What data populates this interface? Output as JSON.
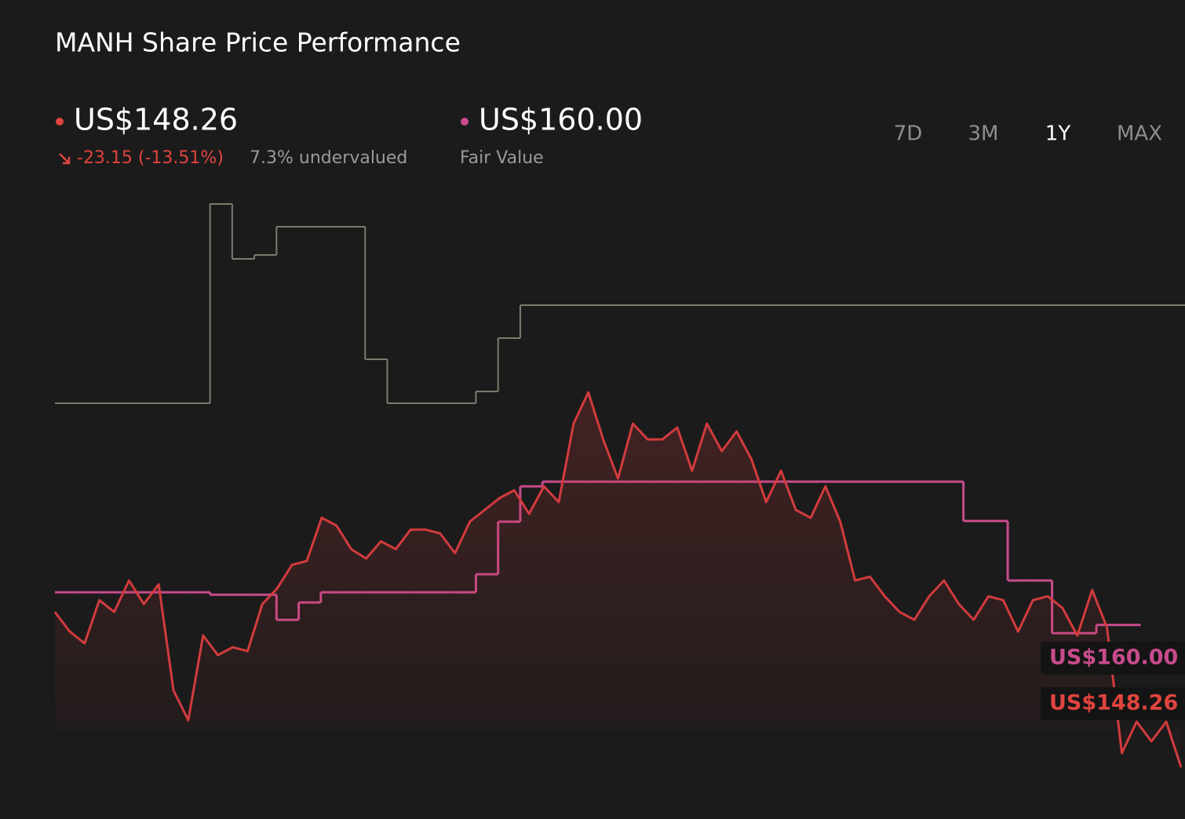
{
  "header": {
    "title": "MANH Share Price Performance",
    "price": "US$148.26",
    "change": "-23.15 (-13.51%)",
    "valuation": "7.3% undervalued",
    "fair_value": "US$160.00",
    "fair_value_label": "Fair Value"
  },
  "ranges": [
    "7D",
    "3M",
    "1Y",
    "MAX"
  ],
  "active_range": "1Y",
  "chart_data": {
    "type": "line",
    "ylim": [
      144,
      196
    ],
    "series": [
      {
        "color": "#7d7a6e",
        "step": true,
        "values": [
          178.28,
          178.28,
          178.28,
          178.28,
          178.28,
          178.28,
          178.28,
          194.71,
          190.18,
          190.5,
          192.83,
          192.83,
          192.83,
          192.83,
          181.9,
          178.28,
          178.28,
          178.28,
          178.28,
          179.25,
          183.65,
          186.36,
          186.36,
          186.36,
          186.36,
          186.36,
          186.36,
          186.36,
          186.36,
          186.36,
          186.36,
          186.36,
          186.36,
          186.36,
          186.36,
          186.36,
          186.36,
          186.36,
          186.36,
          186.36,
          186.36,
          186.36,
          186.36,
          186.36,
          186.36,
          186.36,
          186.36,
          186.36,
          186.36,
          186.36,
          186.36
        ]
      },
      {
        "color": "#c84b8c",
        "step": true,
        "values": [
          162.69,
          162.69,
          162.69,
          162.69,
          162.69,
          162.69,
          162.69,
          162.49,
          162.49,
          162.49,
          160.42,
          161.85,
          162.69,
          162.69,
          162.69,
          162.69,
          162.69,
          162.69,
          162.69,
          164.18,
          168.51,
          171.42,
          171.81,
          171.81,
          171.81,
          171.81,
          171.81,
          171.81,
          171.81,
          171.81,
          171.81,
          171.81,
          171.81,
          171.81,
          171.81,
          171.81,
          171.81,
          171.81,
          171.81,
          171.81,
          171.81,
          168.57,
          168.57,
          163.66,
          163.66,
          159.32,
          159.32,
          160,
          160,
          null,
          null
        ]
      },
      {
        "color": "#d23b3d",
        "values": [
          161.07,
          159.45,
          158.48,
          162.04,
          161.07,
          163.66,
          161.72,
          163.34,
          154.6,
          152.14,
          159.13,
          157.51,
          158.16,
          157.84,
          161.72,
          163.01,
          164.95,
          165.28,
          168.83,
          168.19,
          166.25,
          165.47,
          166.89,
          166.25,
          167.86,
          167.86,
          167.54,
          165.92,
          168.51,
          169.48,
          170.45,
          171.1,
          169.16,
          171.42,
          170.13,
          176.6,
          179.18,
          175.3,
          172.07,
          176.6,
          175.3,
          175.3,
          176.27,
          172.71,
          176.6,
          174.33,
          175.95,
          173.68,
          170.13,
          172.71,
          169.48,
          168.83,
          171.42,
          168.51,
          163.66,
          163.98,
          162.36,
          161.07,
          160.42,
          162.36,
          163.66,
          161.72,
          160.42,
          162.36,
          162.04,
          159.45,
          162.04,
          162.36,
          161.39,
          159.13,
          162.88,
          159.78,
          149.43,
          152.02,
          150.4,
          152.02,
          148.26
        ]
      }
    ]
  }
}
